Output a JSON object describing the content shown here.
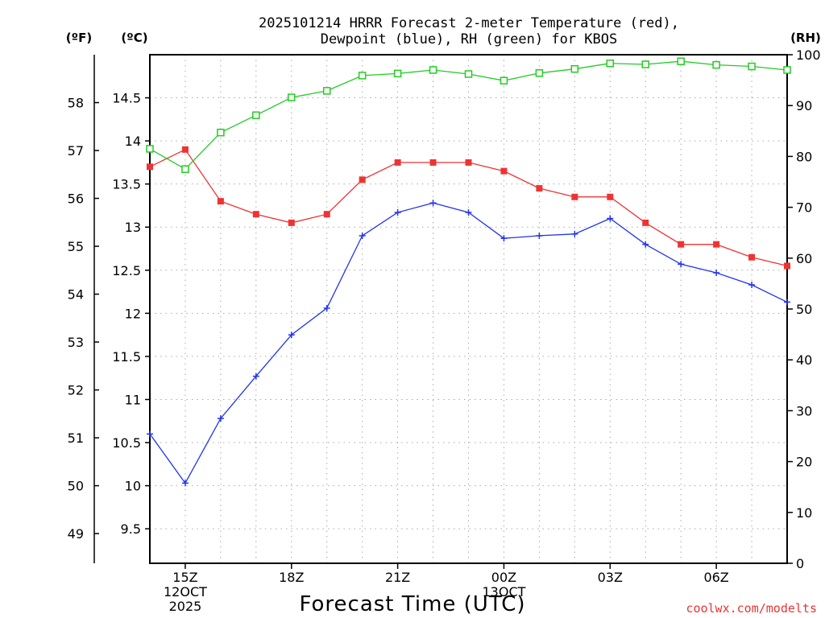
{
  "chart_data": {
    "type": "line",
    "title_line1": "2025101214 HRRR Forecast 2-meter Temperature (red),",
    "title_line2": "Dewpoint (blue), RH (green) for KBOS",
    "units": {
      "fahrenheit": "(ºF)",
      "celsius": "(ºC)",
      "rh": "(RH)"
    },
    "xlabel": "Forecast Time (UTC)",
    "credit": "coolwx.com/modelts",
    "x_hours": [
      0,
      1,
      2,
      3,
      4,
      5,
      6,
      7,
      8,
      9,
      10,
      11,
      12,
      13,
      14,
      15,
      16,
      17,
      18
    ],
    "x_range": [
      0,
      18
    ],
    "x_ticks": [
      {
        "hour": 1,
        "lines": [
          "15Z",
          "12OCT",
          "2025"
        ]
      },
      {
        "hour": 4,
        "lines": [
          "18Z"
        ]
      },
      {
        "hour": 7,
        "lines": [
          "21Z"
        ]
      },
      {
        "hour": 10,
        "lines": [
          "00Z",
          "13OCT"
        ]
      },
      {
        "hour": 13,
        "lines": [
          "03Z"
        ]
      },
      {
        "hour": 16,
        "lines": [
          "06Z"
        ]
      }
    ],
    "celsius_range": [
      9.1,
      15.0
    ],
    "celsius_ticks": [
      "9.5",
      "10",
      "10.5",
      "11",
      "11.5",
      "12",
      "12.5",
      "13",
      "13.5",
      "14",
      "14.5"
    ],
    "fahrenheit_ticks": [
      "49",
      "50",
      "51",
      "52",
      "53",
      "54",
      "55",
      "56",
      "57",
      "58"
    ],
    "rh_range": [
      0,
      100
    ],
    "rh_ticks": [
      "0",
      "10",
      "20",
      "30",
      "40",
      "50",
      "60",
      "70",
      "80",
      "90",
      "100"
    ],
    "colors": {
      "temperature": "#ee3333",
      "dewpoint": "#2233ee",
      "rh": "#22cc22",
      "credit": "#ee3333",
      "grid": "#aaaaaa"
    },
    "series": [
      {
        "name": "Temperature",
        "unit": "C",
        "values": [
          13.7,
          13.9,
          13.3,
          13.15,
          13.05,
          13.15,
          13.55,
          13.75,
          13.75,
          13.75,
          13.65,
          13.45,
          13.35,
          13.35,
          13.05,
          12.8,
          12.8,
          12.65,
          12.55
        ]
      },
      {
        "name": "Dewpoint",
        "unit": "C",
        "values": [
          10.6,
          10.03,
          10.78,
          11.27,
          11.75,
          12.06,
          12.9,
          13.17,
          13.28,
          13.17,
          12.87,
          12.9,
          12.92,
          13.1,
          12.8,
          12.57,
          12.47,
          12.33,
          12.13
        ]
      },
      {
        "name": "RH",
        "unit": "%",
        "values": [
          81.5,
          77.5,
          84.7,
          88.1,
          91.6,
          92.9,
          95.9,
          96.3,
          97.0,
          96.2,
          94.9,
          96.4,
          97.2,
          98.3,
          98.1,
          98.7,
          98.0,
          97.7,
          97.0
        ]
      }
    ]
  }
}
